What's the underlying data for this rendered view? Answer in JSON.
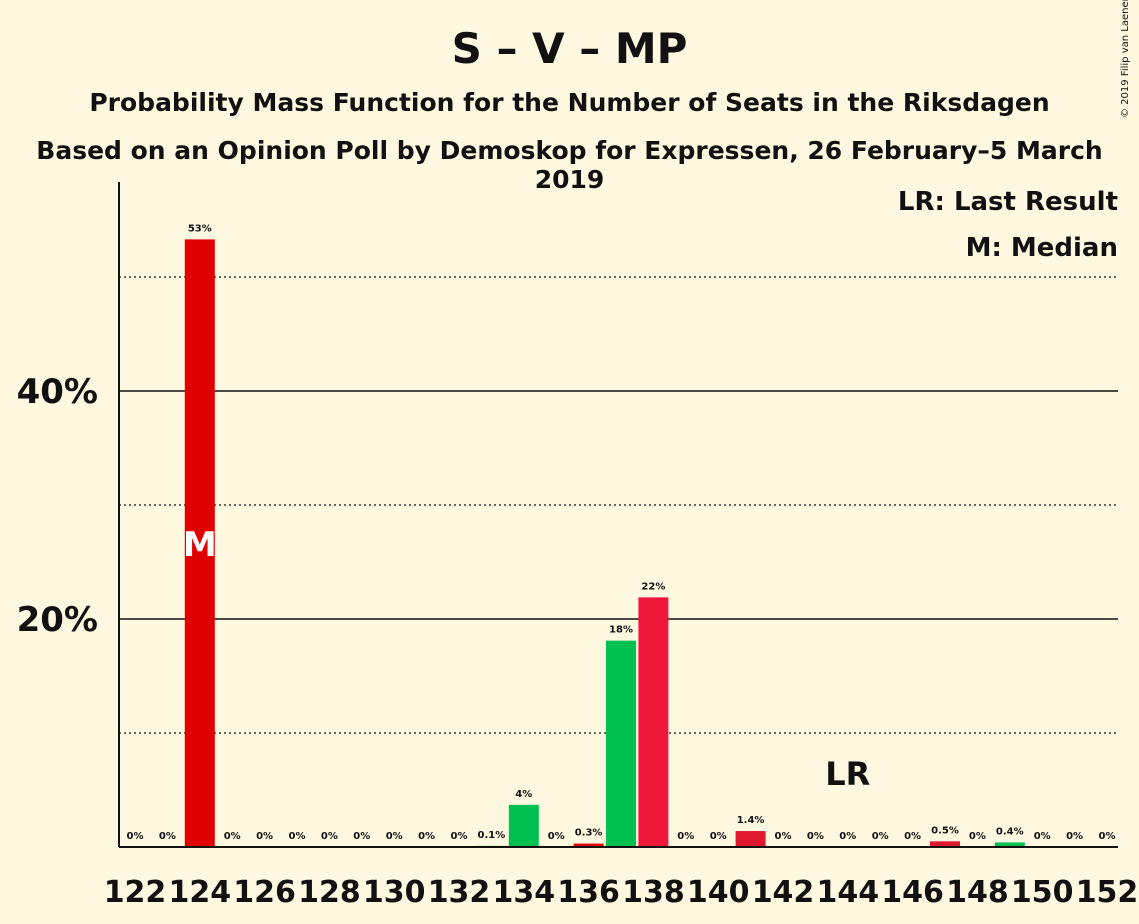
{
  "chart_data": {
    "type": "bar",
    "title": "S – V – MP",
    "subtitle": "Probability Mass Function for the Number of Seats in the Riksdagen",
    "subtitle2": "Based on an Opinion Poll by Demoskop for Expressen, 26 February–5 March 2019",
    "copyright": "© 2019 Filip van Laenen",
    "legend": [
      "LR: Last Result",
      "M: Median"
    ],
    "legend_placement": "top-right",
    "ylim": [
      0,
      58
    ],
    "yticks": [
      20,
      40
    ],
    "ytick_labels": [
      "20%",
      "40%"
    ],
    "gridlines_minor": [
      10,
      30,
      50
    ],
    "gridlines_major": [
      20,
      40
    ],
    "x": [
      122,
      123,
      124,
      125,
      126,
      127,
      128,
      129,
      130,
      131,
      132,
      133,
      134,
      135,
      136,
      137,
      138,
      139,
      140,
      141,
      142,
      143,
      144,
      145,
      146,
      147,
      148,
      149,
      150,
      151,
      152
    ],
    "x_tick_labels": [
      "122",
      "124",
      "126",
      "128",
      "130",
      "132",
      "134",
      "136",
      "138",
      "140",
      "142",
      "144",
      "146",
      "148",
      "150",
      "152"
    ],
    "x_tick_values": [
      122,
      124,
      126,
      128,
      130,
      132,
      134,
      136,
      138,
      140,
      142,
      144,
      146,
      148,
      150,
      152
    ],
    "values": [
      0,
      0,
      53.3,
      0,
      0,
      0,
      0,
      0,
      0,
      0,
      0,
      0.1,
      3.7,
      0,
      0.3,
      18.1,
      21.9,
      0,
      0,
      1.4,
      0,
      0,
      0,
      0,
      0,
      0.5,
      0,
      0.4,
      0,
      0,
      0
    ],
    "labels": [
      "0%",
      "0%",
      "53%",
      "0%",
      "0%",
      "0%",
      "0%",
      "0%",
      "0%",
      "0%",
      "0%",
      "0.1%",
      "4%",
      "0%",
      "0.3%",
      "18%",
      "22%",
      "0%",
      "0%",
      "1.4%",
      "0%",
      "0%",
      "0%",
      "0%",
      "0%",
      "0.5%",
      "0%",
      "0.4%",
      "0%",
      "0%",
      "0%"
    ],
    "colors": [
      "#e00000",
      "#e00000",
      "#e00000",
      "#e00000",
      "#e00000",
      "#e00000",
      "#e00000",
      "#e00000",
      "#e00000",
      "#e00000",
      "#e00000",
      "#00c050",
      "#00c050",
      "#e00000",
      "#e00000",
      "#00c050",
      "#f0183a",
      "#e00000",
      "#e00000",
      "#e01830",
      "#e00000",
      "#e00000",
      "#e00000",
      "#e00000",
      "#e00000",
      "#e01830",
      "#e00000",
      "#00c050",
      "#e00000",
      "#e00000",
      "#e00000"
    ],
    "median_seat": 124,
    "median_marker": "M",
    "last_result_seat": 144,
    "last_result_marker": "LR"
  }
}
